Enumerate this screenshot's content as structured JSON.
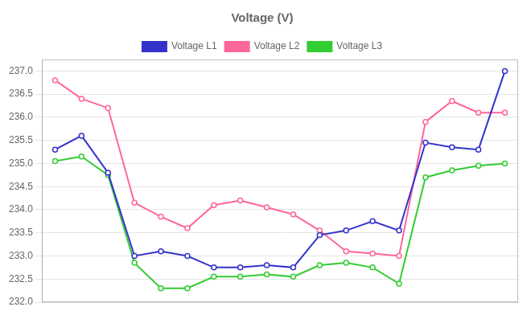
{
  "chart_data": {
    "type": "line",
    "title": "Voltage (V)",
    "categories": [
      null,
      null,
      null,
      null,
      null,
      null,
      null,
      null,
      null,
      null,
      null,
      null,
      null,
      null,
      null,
      null,
      null,
      null
    ],
    "series": [
      {
        "name": "Voltage L1",
        "color": "#3333cc",
        "values": [
          235.3,
          235.6,
          234.8,
          233.0,
          233.1,
          233.0,
          232.75,
          232.75,
          232.8,
          232.75,
          233.45,
          233.55,
          233.75,
          233.55,
          235.45,
          235.35,
          235.3,
          237.0
        ]
      },
      {
        "name": "Voltage L2",
        "color": "#ff6699",
        "values": [
          236.8,
          236.4,
          236.2,
          234.15,
          233.85,
          233.6,
          234.1,
          234.2,
          234.05,
          233.9,
          233.55,
          233.1,
          233.05,
          233.0,
          235.9,
          236.35,
          236.1,
          236.1
        ]
      },
      {
        "name": "Voltage L3",
        "color": "#33cc33",
        "values": [
          235.05,
          235.15,
          234.75,
          232.85,
          232.3,
          232.3,
          232.55,
          232.55,
          232.6,
          232.55,
          232.8,
          232.85,
          232.75,
          232.4,
          234.7,
          234.85,
          234.95,
          235.0
        ]
      }
    ],
    "ylim": [
      232.0,
      237.25
    ],
    "yticks": [
      {
        "value": 232.0,
        "label": "232.0"
      },
      232.5,
      {
        "value": 233.0,
        "label": "233.0"
      },
      233.5,
      {
        "value": 234.0,
        "label": "234.0"
      },
      234.5,
      {
        "value": 235.0,
        "label": "235.0"
      },
      235.5,
      {
        "value": 236.0,
        "label": "236.0"
      },
      236.5,
      {
        "value": 237.0,
        "label": "237.0"
      }
    ],
    "grid": true,
    "legend": "top",
    "marker": "circle",
    "line_style": "solid",
    "tick_labels": "y"
  }
}
